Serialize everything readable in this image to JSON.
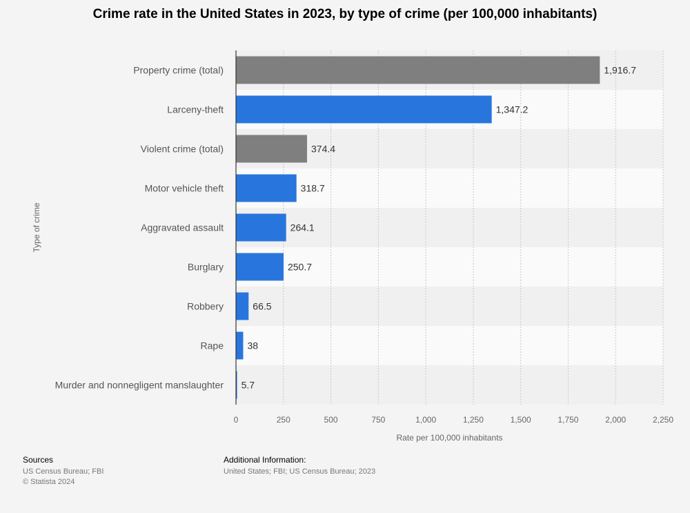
{
  "chart_data": {
    "type": "bar",
    "orientation": "horizontal",
    "title": "Crime rate in the United States in 2023, by type of crime (per 100,000 inhabitants)",
    "xlabel": "Rate per 100,000 inhabitants",
    "ylabel": "Type of crime",
    "xlim": [
      0,
      2250
    ],
    "xticks": [
      0,
      250,
      500,
      750,
      1000,
      1250,
      1500,
      1750,
      2000,
      2250
    ],
    "xtick_labels": [
      "0",
      "250",
      "500",
      "750",
      "1,000",
      "1,250",
      "1,500",
      "1,750",
      "2,000",
      "2,250"
    ],
    "categories": [
      "Property crime (total)",
      "Larceny-theft",
      "Violent crime (total)",
      "Motor vehicle theft",
      "Aggravated assault",
      "Burglary",
      "Robbery",
      "Rape",
      "Murder and nonnegligent manslaughter"
    ],
    "values": [
      1916.7,
      1347.2,
      374.4,
      318.7,
      264.1,
      250.7,
      66.5,
      38,
      5.7
    ],
    "value_labels": [
      "1,916.7",
      "1,347.2",
      "374.4",
      "318.7",
      "264.1",
      "250.7",
      "66.5",
      "38",
      "5.7"
    ],
    "bar_colors": [
      "#7f7f7f",
      "#2876dd",
      "#7f7f7f",
      "#2876dd",
      "#2876dd",
      "#2876dd",
      "#2876dd",
      "#2876dd",
      "#2876dd"
    ],
    "grid": true
  },
  "footer": {
    "sources_heading": "Sources",
    "sources_lines": [
      "US Census Bureau; FBI",
      "© Statista 2024"
    ],
    "additional_heading": "Additional Information:",
    "additional_text": "United States; FBI; US Census Bureau; 2023"
  }
}
